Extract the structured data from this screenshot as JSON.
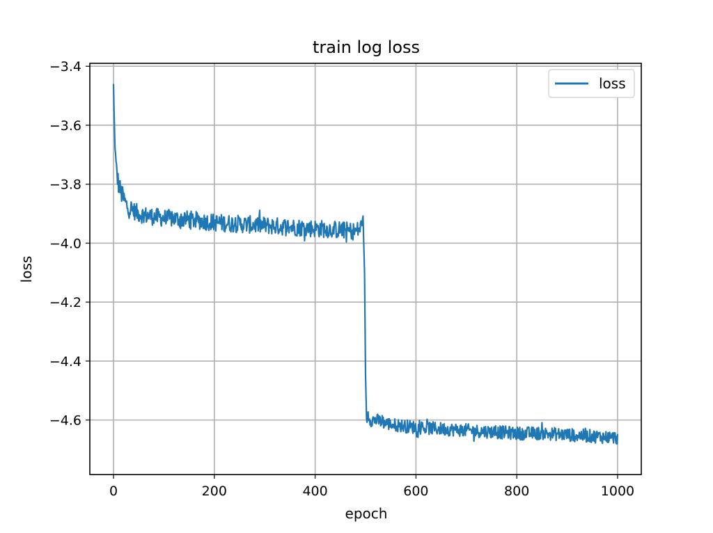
{
  "chart_data": {
    "type": "line",
    "title": "train log loss",
    "xlabel": "epoch",
    "ylabel": "loss",
    "xlim": [
      -47,
      1047
    ],
    "ylim": [
      -4.785,
      -3.39
    ],
    "xticks": [
      0,
      200,
      400,
      600,
      800,
      1000
    ],
    "xtick_labels": [
      "0",
      "200",
      "400",
      "600",
      "800",
      "1000"
    ],
    "yticks": [
      -3.4,
      -3.6,
      -3.8,
      -4.0,
      -4.2,
      -4.4,
      -4.6
    ],
    "ytick_labels": [
      "−3.4",
      "−3.6",
      "−3.8",
      "−4.0",
      "−4.2",
      "−4.4",
      "−4.6"
    ],
    "grid": true,
    "legend_position": "top-right",
    "series": [
      {
        "name": "loss",
        "color": "#1f77b4",
        "x": [
          0,
          1,
          3,
          5,
          8,
          10,
          15,
          20,
          25,
          30,
          40,
          50,
          60,
          80,
          100,
          150,
          200,
          250,
          300,
          350,
          400,
          450,
          480,
          490,
          495,
          498,
          500,
          502,
          505,
          510,
          520,
          550,
          600,
          650,
          700,
          750,
          800,
          850,
          900,
          950,
          1000
        ],
        "values": [
          -3.46,
          -3.55,
          -3.68,
          -3.74,
          -3.78,
          -3.8,
          -3.83,
          -3.85,
          -3.87,
          -3.88,
          -3.89,
          -3.9,
          -3.905,
          -3.91,
          -3.915,
          -3.92,
          -3.93,
          -3.935,
          -3.94,
          -3.945,
          -3.95,
          -3.955,
          -3.96,
          -3.95,
          -3.91,
          -4.1,
          -4.45,
          -4.6,
          -4.58,
          -4.6,
          -4.6,
          -4.615,
          -4.625,
          -4.63,
          -4.635,
          -4.64,
          -4.645,
          -4.645,
          -4.65,
          -4.655,
          -4.66
        ]
      }
    ]
  }
}
